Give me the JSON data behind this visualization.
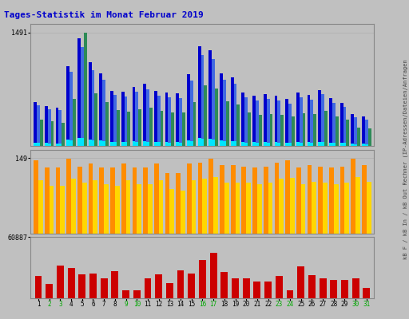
{
  "title": "Tages-Statistik im Monat Februar 2019",
  "days": [
    1,
    2,
    3,
    4,
    5,
    6,
    7,
    8,
    9,
    10,
    11,
    12,
    13,
    14,
    15,
    16,
    17,
    18,
    19,
    20,
    21,
    22,
    23,
    24,
    25,
    26,
    27,
    28,
    29,
    30,
    31
  ],
  "top_anfragen": [
    580,
    530,
    510,
    1050,
    1420,
    1100,
    960,
    730,
    710,
    780,
    820,
    730,
    700,
    690,
    940,
    1310,
    1260,
    960,
    900,
    700,
    660,
    680,
    660,
    620,
    700,
    670,
    740,
    630,
    570,
    420,
    390
  ],
  "top_dateien": [
    540,
    490,
    470,
    980,
    1300,
    1000,
    870,
    670,
    650,
    710,
    750,
    660,
    640,
    630,
    860,
    1200,
    1140,
    875,
    820,
    640,
    600,
    620,
    600,
    560,
    640,
    610,
    680,
    570,
    520,
    380,
    350
  ],
  "top_rechner": [
    350,
    330,
    310,
    620,
    1490,
    690,
    580,
    480,
    450,
    490,
    510,
    460,
    440,
    440,
    580,
    800,
    760,
    590,
    550,
    440,
    410,
    420,
    410,
    390,
    430,
    420,
    460,
    390,
    350,
    250,
    235
  ],
  "mid_kbout": [
    145,
    130,
    130,
    148,
    132,
    138,
    130,
    130,
    138,
    130,
    130,
    138,
    120,
    120,
    138,
    140,
    148,
    135,
    135,
    132,
    130,
    132,
    140,
    145,
    130,
    135,
    132,
    130,
    132,
    148,
    135
  ],
  "mid_kbin": [
    105,
    95,
    95,
    108,
    100,
    105,
    98,
    95,
    105,
    97,
    97,
    105,
    88,
    85,
    105,
    108,
    112,
    100,
    100,
    100,
    98,
    100,
    108,
    110,
    98,
    102,
    100,
    98,
    100,
    112,
    102
  ],
  "bot_kbf": [
    22000,
    14000,
    33000,
    30000,
    24000,
    25000,
    20000,
    27000,
    8000,
    8000,
    20000,
    24000,
    15000,
    28000,
    25000,
    38000,
    45000,
    26000,
    20000,
    20000,
    17000,
    17000,
    22000,
    8000,
    32000,
    23000,
    20000,
    18000,
    18000,
    20000,
    10000
  ],
  "color_anfragen": "#0000cc",
  "color_dateien": "#4169e1",
  "color_rechner": "#2e8b57",
  "color_ip": "#00e5ff",
  "color_kbout": "#ff8c00",
  "color_kbin": "#ffd700",
  "color_kbf": "#cc0000",
  "bg_color": "#c0c0c0",
  "title_color": "#0000cc",
  "weekend_days": [
    2,
    3,
    9,
    10,
    16,
    17,
    23,
    24,
    30,
    31
  ],
  "right_label": "kB F / kB In / kB Out Rechner (IP-Adressen/Dateien/Anfragen"
}
